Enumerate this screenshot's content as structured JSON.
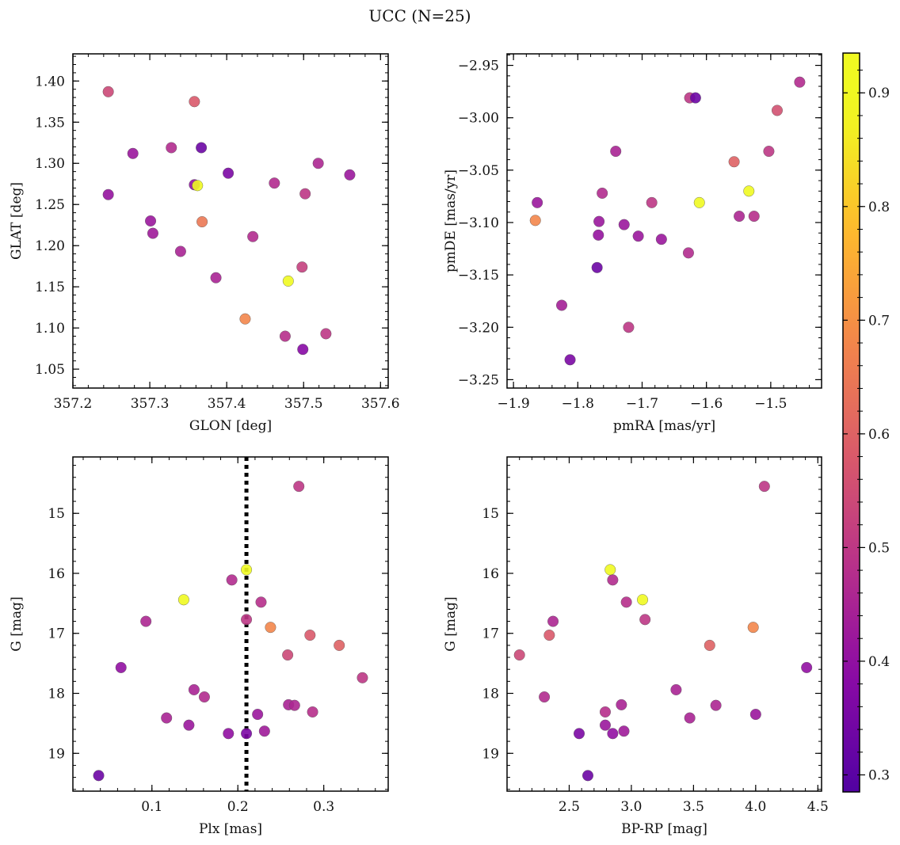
{
  "figure": {
    "title": "UCC (N=25)"
  },
  "colorbar": {
    "colormap": "plasma",
    "range": [
      0.285,
      0.935
    ],
    "ticks": [
      "0.3",
      "0.4",
      "0.5",
      "0.6",
      "0.7",
      "0.8",
      "0.9"
    ]
  },
  "chart_data": [
    {
      "type": "scatter",
      "id": "glon-glat",
      "xlabel": "GLON [deg]",
      "ylabel": "GLAT [deg]",
      "xlim": [
        357.2,
        357.61
      ],
      "ylim": [
        1.027,
        1.433
      ],
      "y_inverted": false,
      "x_ticks": [
        357.2,
        357.3,
        357.4,
        357.5,
        357.6
      ],
      "x_tick_labels": [
        "357.2",
        "357.3",
        "357.4",
        "357.5",
        "357.6"
      ],
      "y_ticks": [
        1.05,
        1.1,
        1.15,
        1.2,
        1.25,
        1.3,
        1.35,
        1.4
      ],
      "y_tick_labels": [
        "1.05",
        "1.10",
        "1.15",
        "1.20",
        "1.25",
        "1.30",
        "1.35",
        "1.40"
      ],
      "points": [
        {
          "x": 357.246,
          "y": 1.387,
          "c": 0.54
        },
        {
          "x": 357.358,
          "y": 1.375,
          "c": 0.58
        },
        {
          "x": 357.278,
          "y": 1.312,
          "c": 0.42
        },
        {
          "x": 357.328,
          "y": 1.319,
          "c": 0.47
        },
        {
          "x": 357.367,
          "y": 1.319,
          "c": 0.33
        },
        {
          "x": 357.519,
          "y": 1.3,
          "c": 0.46
        },
        {
          "x": 357.402,
          "y": 1.288,
          "c": 0.36
        },
        {
          "x": 357.56,
          "y": 1.286,
          "c": 0.42
        },
        {
          "x": 357.462,
          "y": 1.276,
          "c": 0.47
        },
        {
          "x": 357.358,
          "y": 1.274,
          "c": 0.4
        },
        {
          "x": 357.362,
          "y": 1.273,
          "c": 0.92
        },
        {
          "x": 357.246,
          "y": 1.262,
          "c": 0.41
        },
        {
          "x": 357.502,
          "y": 1.263,
          "c": 0.5
        },
        {
          "x": 357.301,
          "y": 1.23,
          "c": 0.42
        },
        {
          "x": 357.368,
          "y": 1.229,
          "c": 0.65
        },
        {
          "x": 357.304,
          "y": 1.215,
          "c": 0.43
        },
        {
          "x": 357.434,
          "y": 1.211,
          "c": 0.47
        },
        {
          "x": 357.34,
          "y": 1.193,
          "c": 0.45
        },
        {
          "x": 357.498,
          "y": 1.174,
          "c": 0.52
        },
        {
          "x": 357.386,
          "y": 1.161,
          "c": 0.45
        },
        {
          "x": 357.48,
          "y": 1.157,
          "c": 0.93
        },
        {
          "x": 357.424,
          "y": 1.111,
          "c": 0.68
        },
        {
          "x": 357.476,
          "y": 1.09,
          "c": 0.48
        },
        {
          "x": 357.529,
          "y": 1.093,
          "c": 0.5
        },
        {
          "x": 357.499,
          "y": 1.074,
          "c": 0.38
        }
      ]
    },
    {
      "type": "scatter",
      "id": "pm",
      "xlabel": "pmRA [mas/yr]",
      "ylabel": "pmDE [mas/yr]",
      "xlim": [
        -1.91,
        -1.421
      ],
      "ylim": [
        -3.258,
        -2.939
      ],
      "y_inverted": false,
      "x_ticks": [
        -1.9,
        -1.8,
        -1.7,
        -1.6,
        -1.5
      ],
      "x_tick_labels": [
        "−1.9",
        "−1.8",
        "−1.7",
        "−1.6",
        "−1.5"
      ],
      "y_ticks": [
        -3.25,
        -3.2,
        -3.15,
        -3.1,
        -3.05,
        -3.0,
        -2.95
      ],
      "y_tick_labels": [
        "−3.25",
        "−3.20",
        "−3.15",
        "−3.10",
        "−3.05",
        "−3.00",
        "−2.95"
      ],
      "points": [
        {
          "x": -1.455,
          "y": -2.966,
          "c": 0.47
        },
        {
          "x": -1.626,
          "y": -2.981,
          "c": 0.5
        },
        {
          "x": -1.617,
          "y": -2.981,
          "c": 0.33
        },
        {
          "x": -1.49,
          "y": -2.993,
          "c": 0.56
        },
        {
          "x": -1.741,
          "y": -3.032,
          "c": 0.45
        },
        {
          "x": -1.503,
          "y": -3.032,
          "c": 0.5
        },
        {
          "x": -1.557,
          "y": -3.042,
          "c": 0.6
        },
        {
          "x": -1.534,
          "y": -3.07,
          "c": 0.92
        },
        {
          "x": -1.762,
          "y": -3.072,
          "c": 0.47
        },
        {
          "x": -1.863,
          "y": -3.081,
          "c": 0.42
        },
        {
          "x": -1.685,
          "y": -3.081,
          "c": 0.5
        },
        {
          "x": -1.611,
          "y": -3.081,
          "c": 0.93
        },
        {
          "x": -1.549,
          "y": -3.094,
          "c": 0.46
        },
        {
          "x": -1.526,
          "y": -3.094,
          "c": 0.48
        },
        {
          "x": -1.866,
          "y": -3.098,
          "c": 0.68
        },
        {
          "x": -1.767,
          "y": -3.099,
          "c": 0.42
        },
        {
          "x": -1.728,
          "y": -3.102,
          "c": 0.42
        },
        {
          "x": -1.768,
          "y": -3.112,
          "c": 0.41
        },
        {
          "x": -1.706,
          "y": -3.113,
          "c": 0.42
        },
        {
          "x": -1.67,
          "y": -3.116,
          "c": 0.42
        },
        {
          "x": -1.628,
          "y": -3.129,
          "c": 0.47
        },
        {
          "x": -1.77,
          "y": -3.143,
          "c": 0.33
        },
        {
          "x": -1.825,
          "y": -3.179,
          "c": 0.44
        },
        {
          "x": -1.721,
          "y": -3.2,
          "c": 0.5
        },
        {
          "x": -1.812,
          "y": -3.231,
          "c": 0.36
        }
      ]
    },
    {
      "type": "scatter",
      "id": "plx-g",
      "xlabel": "Plx [mas]",
      "ylabel": "G [mag]",
      "xlim": [
        0.008,
        0.375
      ],
      "ylim": [
        19.63,
        14.06
      ],
      "y_inverted": true,
      "x_ticks": [
        0.1,
        0.2,
        0.3
      ],
      "x_tick_labels": [
        "0.1",
        "0.2",
        "0.3"
      ],
      "y_ticks": [
        15,
        16,
        17,
        18,
        19
      ],
      "y_tick_labels": [
        "15",
        "16",
        "17",
        "18",
        "19"
      ],
      "vline": {
        "x": 0.21,
        "style": "dotted"
      },
      "points": [
        {
          "x": 0.271,
          "y": 14.55,
          "c": 0.5
        },
        {
          "x": 0.21,
          "y": 15.94,
          "c": 0.93
        },
        {
          "x": 0.193,
          "y": 16.11,
          "c": 0.47
        },
        {
          "x": 0.137,
          "y": 16.44,
          "c": 0.92
        },
        {
          "x": 0.227,
          "y": 16.48,
          "c": 0.48
        },
        {
          "x": 0.093,
          "y": 16.8,
          "c": 0.46
        },
        {
          "x": 0.21,
          "y": 16.77,
          "c": 0.5
        },
        {
          "x": 0.238,
          "y": 16.9,
          "c": 0.68
        },
        {
          "x": 0.284,
          "y": 17.03,
          "c": 0.58
        },
        {
          "x": 0.318,
          "y": 17.2,
          "c": 0.6
        },
        {
          "x": 0.258,
          "y": 17.36,
          "c": 0.54
        },
        {
          "x": 0.064,
          "y": 17.57,
          "c": 0.4
        },
        {
          "x": 0.345,
          "y": 17.74,
          "c": 0.5
        },
        {
          "x": 0.149,
          "y": 17.94,
          "c": 0.45
        },
        {
          "x": 0.161,
          "y": 18.06,
          "c": 0.47
        },
        {
          "x": 0.259,
          "y": 18.19,
          "c": 0.45
        },
        {
          "x": 0.266,
          "y": 18.2,
          "c": 0.46
        },
        {
          "x": 0.287,
          "y": 18.31,
          "c": 0.48
        },
        {
          "x": 0.223,
          "y": 18.35,
          "c": 0.42
        },
        {
          "x": 0.117,
          "y": 18.41,
          "c": 0.45
        },
        {
          "x": 0.143,
          "y": 18.53,
          "c": 0.42
        },
        {
          "x": 0.231,
          "y": 18.63,
          "c": 0.43
        },
        {
          "x": 0.189,
          "y": 18.67,
          "c": 0.4
        },
        {
          "x": 0.21,
          "y": 18.67,
          "c": 0.36
        },
        {
          "x": 0.038,
          "y": 19.37,
          "c": 0.33
        }
      ]
    },
    {
      "type": "scatter",
      "id": "cmd",
      "xlabel": "BP-RP [mag]",
      "ylabel": "G [mag]",
      "xlim": [
        2.0,
        4.53
      ],
      "ylim": [
        19.63,
        14.06
      ],
      "y_inverted": true,
      "x_ticks": [
        2.5,
        3.0,
        3.5,
        4.0,
        4.5
      ],
      "x_tick_labels": [
        "2.5",
        "3.0",
        "3.5",
        "4.0",
        "4.5"
      ],
      "y_ticks": [
        15,
        16,
        17,
        18,
        19
      ],
      "y_tick_labels": [
        "15",
        "16",
        "17",
        "18",
        "19"
      ],
      "points": [
        {
          "x": 4.07,
          "y": 14.55,
          "c": 0.5
        },
        {
          "x": 2.83,
          "y": 15.94,
          "c": 0.93
        },
        {
          "x": 2.85,
          "y": 16.11,
          "c": 0.47
        },
        {
          "x": 3.09,
          "y": 16.44,
          "c": 0.92
        },
        {
          "x": 2.96,
          "y": 16.48,
          "c": 0.48
        },
        {
          "x": 2.37,
          "y": 16.8,
          "c": 0.46
        },
        {
          "x": 3.11,
          "y": 16.77,
          "c": 0.5
        },
        {
          "x": 3.98,
          "y": 16.9,
          "c": 0.68
        },
        {
          "x": 2.34,
          "y": 17.03,
          "c": 0.58
        },
        {
          "x": 3.63,
          "y": 17.2,
          "c": 0.6
        },
        {
          "x": 2.1,
          "y": 17.36,
          "c": 0.54
        },
        {
          "x": 4.41,
          "y": 17.57,
          "c": 0.4
        },
        {
          "x": 3.36,
          "y": 17.94,
          "c": 0.45
        },
        {
          "x": 2.3,
          "y": 18.06,
          "c": 0.47
        },
        {
          "x": 2.92,
          "y": 18.19,
          "c": 0.45
        },
        {
          "x": 3.68,
          "y": 18.2,
          "c": 0.46
        },
        {
          "x": 2.79,
          "y": 18.31,
          "c": 0.48
        },
        {
          "x": 4.0,
          "y": 18.35,
          "c": 0.42
        },
        {
          "x": 3.47,
          "y": 18.41,
          "c": 0.45
        },
        {
          "x": 2.79,
          "y": 18.53,
          "c": 0.42
        },
        {
          "x": 2.94,
          "y": 18.63,
          "c": 0.43
        },
        {
          "x": 2.85,
          "y": 18.67,
          "c": 0.4
        },
        {
          "x": 2.58,
          "y": 18.67,
          "c": 0.36
        },
        {
          "x": 2.65,
          "y": 19.37,
          "c": 0.33
        }
      ]
    }
  ]
}
